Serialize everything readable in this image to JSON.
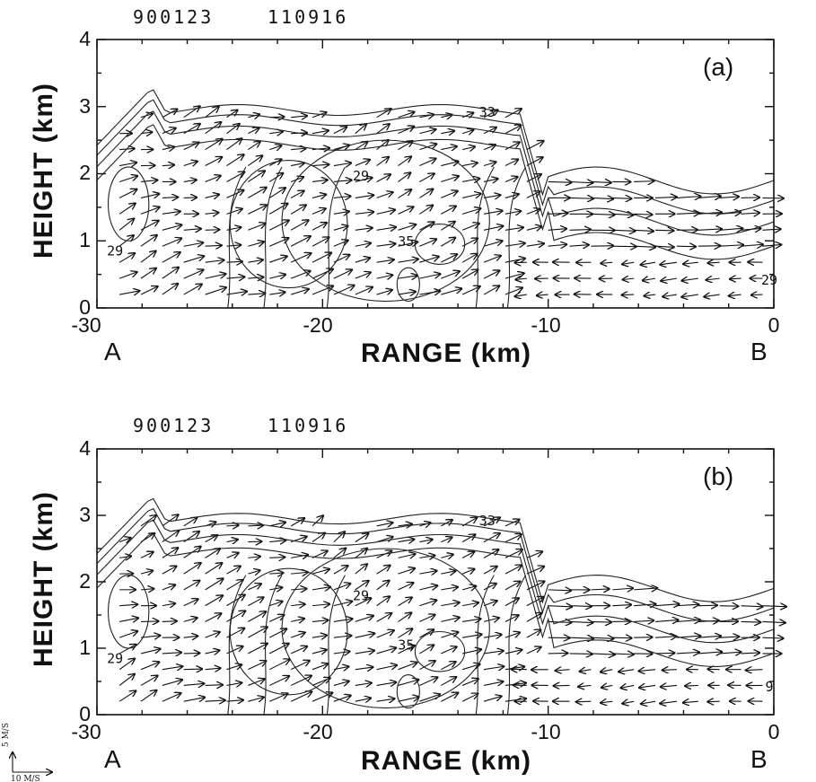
{
  "chart_data": [
    {
      "type": "vector-field-contour",
      "panel_label": "(a)",
      "header_date": "900123",
      "header_time": "110916",
      "xlabel": "RANGE (km)",
      "ylabel": "HEIGHT (km)",
      "xlim": [
        -30,
        0
      ],
      "ylim": [
        0,
        4
      ],
      "x_ticks": [
        "-30",
        "-20",
        "-10",
        "0"
      ],
      "y_ticks": [
        "0",
        "1",
        "2",
        "3",
        "4"
      ],
      "start_label": "A",
      "end_label": "B",
      "contour_labels": [
        {
          "text": "29",
          "x": -29.2,
          "y": 0.78
        },
        {
          "text": "29",
          "x": -18.3,
          "y": 1.9
        },
        {
          "text": "33",
          "x": -12.7,
          "y": 2.85
        },
        {
          "text": "35",
          "x": -16.3,
          "y": 0.92
        },
        {
          "text": "29",
          "x": -0.2,
          "y": 0.35
        }
      ]
    },
    {
      "type": "vector-field-contour",
      "panel_label": "(b)",
      "header_date": "900123",
      "header_time": "110916",
      "xlabel": "RANGE (km)",
      "ylabel": "HEIGHT (km)",
      "xlim": [
        -30,
        0
      ],
      "ylim": [
        0,
        4
      ],
      "x_ticks": [
        "-30",
        "-20",
        "-10",
        "0"
      ],
      "y_ticks": [
        "0",
        "1",
        "2",
        "3",
        "4"
      ],
      "start_label": "A",
      "end_label": "B",
      "contour_labels": [
        {
          "text": "29",
          "x": -29.2,
          "y": 0.78
        },
        {
          "text": "29",
          "x": -18.3,
          "y": 1.72
        },
        {
          "text": "33",
          "x": -12.7,
          "y": 2.85
        },
        {
          "text": "35",
          "x": -16.3,
          "y": 0.98
        },
        {
          "text": "9",
          "x": -0.2,
          "y": 0.35
        }
      ]
    }
  ],
  "scale_vector": {
    "vertical_label": "5 M/S",
    "horizontal_label": "10 M/S"
  }
}
